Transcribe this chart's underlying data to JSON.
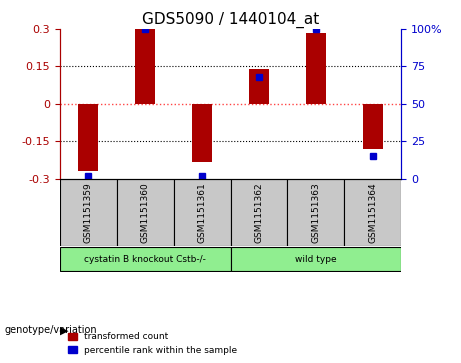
{
  "title": "GDS5090 / 1440104_at",
  "samples": [
    "GSM1151359",
    "GSM1151360",
    "GSM1151361",
    "GSM1151362",
    "GSM1151363",
    "GSM1151364"
  ],
  "bar_values": [
    -0.27,
    0.3,
    -0.235,
    0.14,
    0.285,
    -0.18
  ],
  "percentile_values": [
    2,
    100,
    2,
    68,
    100,
    15
  ],
  "groups": [
    {
      "label": "cystatin B knockout Cstb-/-",
      "color": "#90EE90",
      "indices": [
        0,
        1,
        2
      ]
    },
    {
      "label": "wild type",
      "color": "#90EE90",
      "indices": [
        3,
        4,
        5
      ]
    }
  ],
  "group_label_row": "genotype/variation",
  "ylim": [
    -0.3,
    0.3
  ],
  "y2lim": [
    0,
    100
  ],
  "yticks": [
    -0.3,
    -0.15,
    0,
    0.15,
    0.3
  ],
  "y2ticks": [
    0,
    25,
    50,
    75,
    100
  ],
  "bar_color": "#AA0000",
  "dot_color": "#0000CC",
  "zero_line_color": "#FF4444",
  "grid_color": "#000000",
  "background_color": "#FFFFFF",
  "legend_bar_label": "transformed count",
  "legend_dot_label": "percentile rank within the sample",
  "title_fontsize": 11,
  "axis_fontsize": 8,
  "label_fontsize": 8
}
